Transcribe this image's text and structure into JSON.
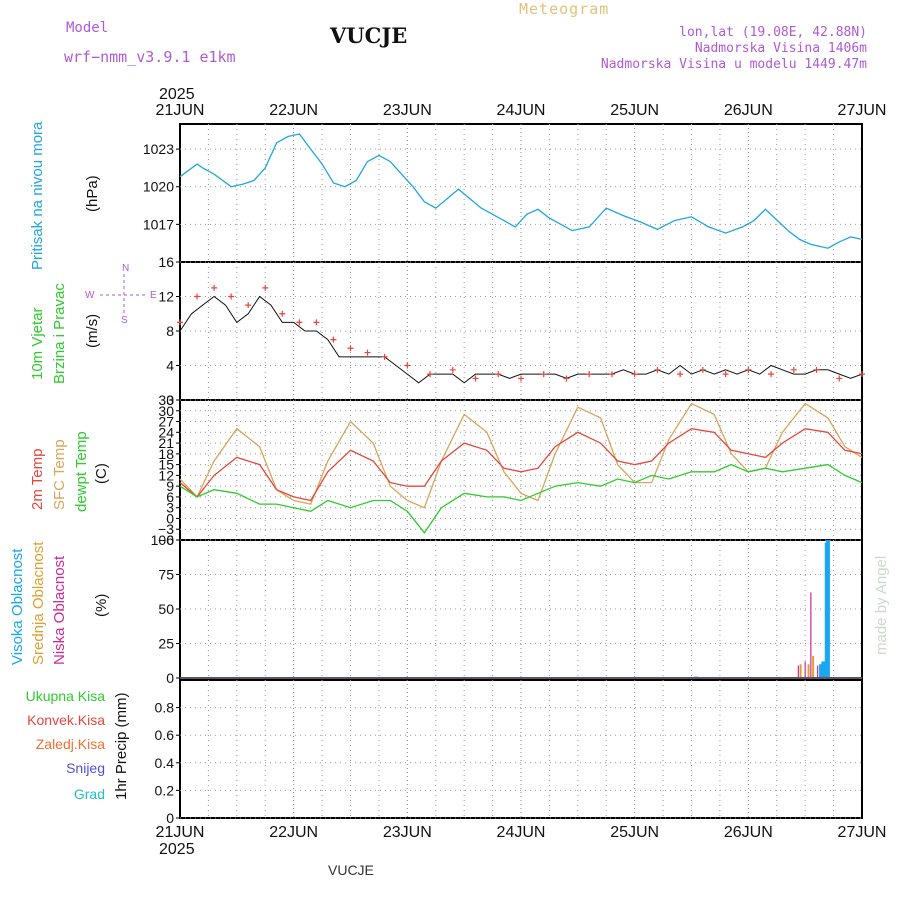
{
  "header": {
    "model_label": "Model",
    "model_name": "wrf−nmm_v3.9.1  e1km",
    "title": "VUCJE",
    "meteogram": "Meteogram",
    "lonlat": "lon,lat (19.08E, 42.88N)",
    "altitude": "Nadmorska Visina 1406m",
    "model_altitude": "Nadmorska Visina u modelu 1449.47m"
  },
  "time_axis": {
    "year": "2025",
    "ticks": [
      "21JUN",
      "22JUN",
      "23JUN",
      "24JUN",
      "25JUN",
      "26JUN",
      "27JUN"
    ]
  },
  "footer": {
    "station": "VUCJE"
  },
  "watermark": "made by Angel",
  "panels": {
    "pressure": {
      "label_main": "Pritisak na nivou mora",
      "unit": "(hPa)"
    },
    "wind": {
      "label_line1": "10m Vjetar",
      "label_line2": "Brzina i Pravac",
      "unit": "(m/s)",
      "compass": {
        "n": "N",
        "w": "W",
        "e": "E",
        "s": "S"
      }
    },
    "temp": {
      "label_2m": "2m Temp",
      "label_sfc": "SFC Temp",
      "label_dew": "dewpt Temp",
      "unit": "(C)"
    },
    "cloud": {
      "label_high": "Visoka Oblacnost",
      "label_mid": "Srednja Oblacnost",
      "label_low": "Niska Oblacnost",
      "unit": "(%)"
    },
    "precip": {
      "labels": [
        "Ukupna  Kisa",
        "Konvek.Kisa",
        "Zaledj.Kisa",
        "Snijeg",
        "Grad"
      ],
      "unit": "1hr Precip (mm)"
    }
  },
  "colors": {
    "pressure": "#1fa7e0",
    "temp2m": "#e8463c",
    "sfc": "#d8a55a",
    "dew": "#2ecc2e",
    "cloud_high": "#19a8f0",
    "cloud_mid": "#e0a030",
    "cloud_low": "#cc2a9a",
    "wind_speed": "#111111",
    "wind_gust": "#e8463c",
    "precip_total": "#2ecc2e",
    "precip_conv": "#e8463c",
    "precip_frz": "#f07030",
    "precip_snow": "#5050e0",
    "precip_hail": "#20c0c0"
  },
  "chart_data": [
    {
      "type": "line",
      "x_unit": "days since 21JUN 00Z",
      "ylabel": "(hPa)",
      "ylim": [
        1014,
        1025
      ],
      "yticks": [
        1017,
        1020,
        1023
      ],
      "series": [
        {
          "name": "Pritisak na nivou mora",
          "x": [
            0,
            0.15,
            0.2,
            0.3,
            0.45,
            0.55,
            0.65,
            0.75,
            0.85,
            0.95,
            1.05,
            1.15,
            1.25,
            1.35,
            1.45,
            1.55,
            1.65,
            1.75,
            1.85,
            1.95,
            2.05,
            2.15,
            2.25,
            2.45,
            2.65,
            2.75,
            2.85,
            2.95,
            3.05,
            3.15,
            3.25,
            3.45,
            3.6,
            3.75,
            3.9,
            4.05,
            4.2,
            4.35,
            4.5,
            4.65,
            4.8,
            4.95,
            5.05,
            5.15,
            5.35,
            5.45,
            5.55,
            5.7,
            5.8,
            5.9,
            6.0
          ],
          "values": [
            1020.8,
            1021.8,
            1021.5,
            1021.0,
            1020.0,
            1020.2,
            1020.5,
            1021.5,
            1023.5,
            1024.0,
            1024.2,
            1023.0,
            1021.8,
            1020.3,
            1020.0,
            1020.5,
            1022.0,
            1022.5,
            1022.0,
            1021.0,
            1020.0,
            1018.8,
            1018.3,
            1019.8,
            1018.3,
            1017.8,
            1017.3,
            1016.8,
            1017.8,
            1018.2,
            1017.5,
            1016.5,
            1016.8,
            1018.3,
            1017.7,
            1017.2,
            1016.6,
            1017.3,
            1017.6,
            1016.8,
            1016.3,
            1016.8,
            1017.3,
            1018.2,
            1016.5,
            1015.8,
            1015.4,
            1015.1,
            1015.6,
            1016.0,
            1015.8
          ]
        }
      ]
    },
    {
      "type": "line",
      "x_unit": "days since 21JUN 00Z",
      "ylabel": "(m/s)",
      "ylim": [
        0,
        16
      ],
      "yticks": [
        0,
        4,
        8,
        12,
        16
      ],
      "series": [
        {
          "name": "speed",
          "x": [
            0,
            0.1,
            0.2,
            0.3,
            0.4,
            0.5,
            0.6,
            0.7,
            0.8,
            0.9,
            1.0,
            1.1,
            1.2,
            1.3,
            1.4,
            1.5,
            1.6,
            1.7,
            1.8,
            1.9,
            2.0,
            2.1,
            2.2,
            2.3,
            2.4,
            2.5,
            2.6,
            2.7,
            2.8,
            2.9,
            3.0,
            3.1,
            3.2,
            3.3,
            3.4,
            3.5,
            3.6,
            3.7,
            3.8,
            3.9,
            4.0,
            4.1,
            4.2,
            4.3,
            4.4,
            4.5,
            4.6,
            4.7,
            4.8,
            4.9,
            5.0,
            5.1,
            5.2,
            5.3,
            5.4,
            5.5,
            5.6,
            5.7,
            5.8,
            5.9,
            6.0
          ],
          "values": [
            8,
            10,
            11,
            12,
            11,
            9,
            10,
            12,
            11,
            9,
            9,
            8,
            8,
            7,
            5,
            5,
            5,
            5,
            5,
            4,
            3,
            2,
            3,
            3,
            3,
            2,
            3,
            3,
            3,
            2.5,
            3,
            3,
            3,
            3,
            2.5,
            3,
            3,
            3,
            3,
            3.5,
            3,
            3,
            3.5,
            3,
            4,
            3,
            3.5,
            3,
            3.5,
            3,
            3.5,
            3,
            4,
            3.5,
            3,
            3,
            3.5,
            3.5,
            3,
            2.5,
            3
          ]
        },
        {
          "name": "gust",
          "x": [
            0,
            0.15,
            0.3,
            0.45,
            0.6,
            0.75,
            0.9,
            1.05,
            1.2,
            1.35,
            1.5,
            1.65,
            1.8,
            2.0,
            2.2,
            2.4,
            2.6,
            2.8,
            3.0,
            3.2,
            3.4,
            3.6,
            3.8,
            4.0,
            4.2,
            4.4,
            4.6,
            4.8,
            5.0,
            5.2,
            5.4,
            5.6,
            5.8,
            6.0
          ],
          "values": [
            9,
            12,
            13,
            12,
            11,
            13,
            10,
            9,
            9,
            7,
            6,
            5.5,
            5,
            4,
            3,
            3.5,
            2.5,
            3,
            2.5,
            3,
            2.5,
            3,
            3,
            3,
            3.5,
            3,
            3.5,
            3,
            3.5,
            3,
            3.5,
            3.5,
            2.5,
            3
          ]
        }
      ]
    },
    {
      "type": "line",
      "x_unit": "days since 21JUN 00Z",
      "ylabel": "(C)",
      "ylim": [
        -6,
        33
      ],
      "yticks": [
        -6,
        -3,
        0,
        3,
        6,
        9,
        12,
        15,
        18,
        21,
        24,
        27,
        30,
        33
      ],
      "series": [
        {
          "name": "2m Temp",
          "x": [
            0,
            0.15,
            0.3,
            0.5,
            0.7,
            0.85,
            1.0,
            1.15,
            1.3,
            1.5,
            1.7,
            1.85,
            2.0,
            2.15,
            2.3,
            2.5,
            2.7,
            2.85,
            3.0,
            3.15,
            3.3,
            3.5,
            3.7,
            3.85,
            4.0,
            4.15,
            4.3,
            4.5,
            4.7,
            4.85,
            5.0,
            5.15,
            5.3,
            5.5,
            5.7,
            5.85,
            6.0
          ],
          "values": [
            10,
            6,
            12,
            17,
            15,
            8,
            6,
            5,
            13,
            19,
            16,
            10,
            9,
            9,
            16,
            21,
            19,
            14,
            13,
            14,
            20,
            24,
            21,
            16,
            15,
            16,
            21,
            25,
            24,
            19,
            18,
            17,
            21,
            25,
            24,
            19,
            18
          ]
        },
        {
          "name": "SFC Temp",
          "x": [
            0,
            0.15,
            0.3,
            0.5,
            0.7,
            0.85,
            1.0,
            1.15,
            1.3,
            1.5,
            1.7,
            1.85,
            2.0,
            2.15,
            2.3,
            2.5,
            2.7,
            2.85,
            3.0,
            3.15,
            3.3,
            3.5,
            3.7,
            3.85,
            4.0,
            4.15,
            4.3,
            4.5,
            4.7,
            4.85,
            5.0,
            5.15,
            5.3,
            5.5,
            5.7,
            5.85,
            6.0
          ],
          "values": [
            11,
            6,
            16,
            25,
            20,
            8,
            5,
            4,
            16,
            27,
            21,
            9,
            5,
            3,
            16,
            29,
            24,
            13,
            7,
            5,
            18,
            31,
            28,
            15,
            10,
            10,
            22,
            32,
            29,
            18,
            13,
            14,
            24,
            32,
            28,
            20,
            17
          ]
        },
        {
          "name": "dewpt Temp",
          "x": [
            0,
            0.15,
            0.3,
            0.5,
            0.7,
            0.85,
            1.0,
            1.15,
            1.3,
            1.5,
            1.7,
            1.85,
            2.0,
            2.15,
            2.3,
            2.5,
            2.7,
            2.85,
            3.0,
            3.15,
            3.3,
            3.5,
            3.7,
            3.85,
            4.0,
            4.15,
            4.3,
            4.5,
            4.7,
            4.85,
            5.0,
            5.15,
            5.3,
            5.5,
            5.7,
            5.85,
            6.0
          ],
          "values": [
            9,
            6,
            8,
            7,
            4,
            4,
            3,
            2,
            5,
            3,
            5,
            5,
            2,
            -4,
            3,
            7,
            6,
            6,
            5,
            7,
            9,
            10,
            9,
            11,
            10,
            12,
            11,
            13,
            13,
            15,
            13,
            14,
            13,
            14,
            15,
            12,
            10
          ]
        }
      ]
    },
    {
      "type": "bar",
      "x_unit": "days since 21JUN 00Z",
      "ylabel": "(%)",
      "ylim": [
        0,
        100
      ],
      "yticks": [
        0,
        25,
        50,
        75,
        100
      ],
      "series": [
        {
          "name": "Visoka Oblacnost",
          "x": [
            4.54,
            5.64,
            5.66,
            5.69,
            5.7,
            6.52,
            6.56
          ],
          "values": [
            1,
            10,
            12,
            98,
            100,
            4,
            3
          ]
        },
        {
          "name": "Srednja Oblacnost",
          "x": [
            5.46,
            5.53,
            5.57,
            6.49,
            6.54
          ],
          "values": [
            10,
            10,
            16,
            7,
            5
          ]
        },
        {
          "name": "Niska Oblacnost",
          "x": [
            5.44,
            5.5,
            5.55,
            5.61
          ],
          "values": [
            9,
            12,
            62,
            9
          ]
        }
      ]
    },
    {
      "type": "bar",
      "x_unit": "days since 21JUN 00Z",
      "ylabel": "1hr Precip (mm)",
      "ylim": [
        0,
        1
      ],
      "yticks": [
        0,
        0.2,
        0.4,
        0.6,
        0.8
      ],
      "series": []
    }
  ]
}
